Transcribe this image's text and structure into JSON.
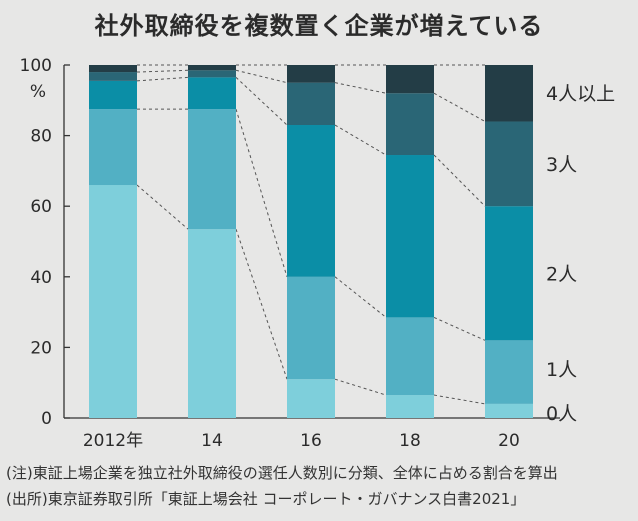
{
  "title": "社外取締役を複数置く企業が増えている",
  "notes": {
    "note": "(注)東証上場企業を独立社外取締役の選任人数別に分類、全体に占める割合を算出",
    "source": "(出所)東京証券取引所「東証上場会社 コーポレート・ガバナンス白書2021」"
  },
  "chart_data": {
    "type": "bar",
    "stacked": true,
    "categories": [
      "2012年",
      "14",
      "16",
      "18",
      "20"
    ],
    "y_unit": "%",
    "ylim": [
      0,
      100
    ],
    "yticks": [
      0,
      20,
      40,
      60,
      80,
      100
    ],
    "grid": false,
    "legend_placement": "right",
    "series": [
      {
        "name": "0人",
        "color": "#7ecfdb",
        "values": [
          66,
          53.5,
          11,
          6.5,
          4
        ]
      },
      {
        "name": "1人",
        "color": "#52b0c4",
        "values": [
          21.5,
          34,
          29,
          22,
          18
        ]
      },
      {
        "name": "2人",
        "color": "#0b8ea6",
        "values": [
          8,
          9,
          43,
          46,
          38
        ]
      },
      {
        "name": "3人",
        "color": "#2a6676",
        "values": [
          2.5,
          2,
          12,
          17.5,
          24
        ]
      },
      {
        "name": "4人以上",
        "color": "#233d46",
        "values": [
          2,
          1.5,
          5,
          8,
          16
        ]
      }
    ]
  }
}
